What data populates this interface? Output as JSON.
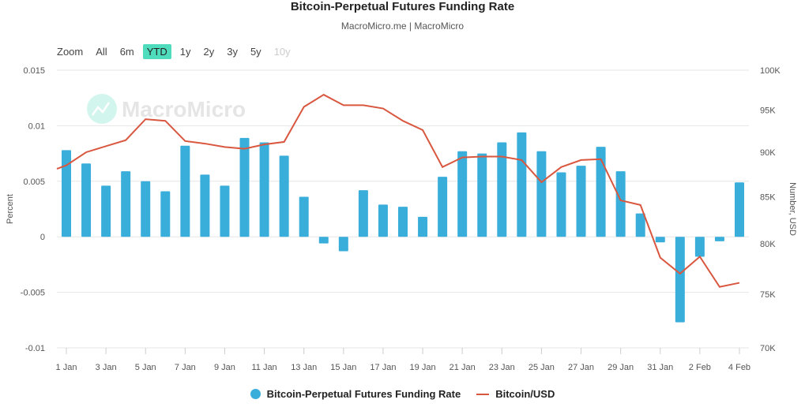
{
  "header": {
    "title": "Bitcoin-Perpetual Futures Funding Rate",
    "subtitle": "MacroMicro.me | MacroMicro"
  },
  "zoom": {
    "label": "Zoom",
    "options": [
      "All",
      "6m",
      "YTD",
      "1y",
      "2y",
      "3y",
      "5y",
      "10y"
    ],
    "active": "YTD",
    "disabled": [
      "10y"
    ]
  },
  "watermark": "MacroMicro",
  "colors": {
    "bars": "#3aaedb",
    "line": "#d9573f",
    "zoom_active": "#4fdcbc"
  },
  "chart_data": {
    "type": "bar+line",
    "title": "Bitcoin-Perpetual Futures Funding Rate",
    "categories": [
      "1 Jan",
      "2 Jan",
      "3 Jan",
      "4 Jan",
      "5 Jan",
      "6 Jan",
      "7 Jan",
      "8 Jan",
      "9 Jan",
      "10 Jan",
      "11 Jan",
      "12 Jan",
      "13 Jan",
      "14 Jan",
      "15 Jan",
      "16 Jan",
      "17 Jan",
      "18 Jan",
      "19 Jan",
      "20 Jan",
      "21 Jan",
      "22 Jan",
      "23 Jan",
      "24 Jan",
      "25 Jan",
      "26 Jan",
      "27 Jan",
      "28 Jan",
      "29 Jan",
      "30 Jan",
      "31 Jan",
      "1 Feb",
      "2 Feb",
      "3 Feb",
      "4 Feb"
    ],
    "x_tick_labels": [
      "1 Jan",
      "3 Jan",
      "5 Jan",
      "7 Jan",
      "9 Jan",
      "11 Jan",
      "13 Jan",
      "15 Jan",
      "17 Jan",
      "19 Jan",
      "21 Jan",
      "23 Jan",
      "25 Jan",
      "27 Jan",
      "29 Jan",
      "31 Jan",
      "2 Feb",
      "4 Feb"
    ],
    "series": [
      {
        "name": "Bitcoin-Perpetual Futures Funding Rate",
        "type": "bar",
        "axis": "left",
        "values": [
          0.0078,
          0.0066,
          0.0046,
          0.0059,
          0.005,
          0.0041,
          0.0082,
          0.0056,
          0.0046,
          0.0089,
          0.0085,
          0.0073,
          0.0036,
          -0.0006,
          -0.0013,
          0.0042,
          0.0029,
          0.0027,
          0.0018,
          0.0054,
          0.0077,
          0.0075,
          0.0085,
          0.0094,
          0.0077,
          0.0058,
          0.0064,
          0.0081,
          0.0059,
          0.0021,
          -0.0005,
          -0.0077,
          -0.0018,
          -0.0004,
          0.0049
        ]
      },
      {
        "name": "Bitcoin/USD",
        "type": "line",
        "axis": "right",
        "values": [
          88500,
          90000,
          90700,
          91400,
          93900,
          93700,
          91300,
          91000,
          90600,
          90400,
          90900,
          91200,
          95400,
          96900,
          95600,
          95600,
          95200,
          93700,
          92600,
          88300,
          89400,
          89500,
          89500,
          89100,
          86600,
          88300,
          89100,
          89200,
          84600,
          84100,
          78600,
          77000,
          78700,
          75700,
          76100
        ]
      }
    ],
    "y_left": {
      "label": "Percent",
      "range": [
        -0.01,
        0.015
      ],
      "ticks": [
        "0.015",
        "0.01",
        "0.005",
        "0",
        "-0.005",
        "-0.01"
      ],
      "tick_values": [
        0.015,
        0.01,
        0.005,
        0,
        -0.005,
        -0.01
      ]
    },
    "y_right": {
      "label": "Number, USD",
      "scale": "log",
      "range": [
        70000,
        100000
      ],
      "ticks": [
        "100K",
        "95K",
        "90K",
        "85K",
        "80K",
        "75K",
        "70K"
      ],
      "tick_values": [
        100000,
        95000,
        90000,
        85000,
        80000,
        75000,
        70000
      ]
    },
    "grid": true,
    "legend": "bottom"
  }
}
